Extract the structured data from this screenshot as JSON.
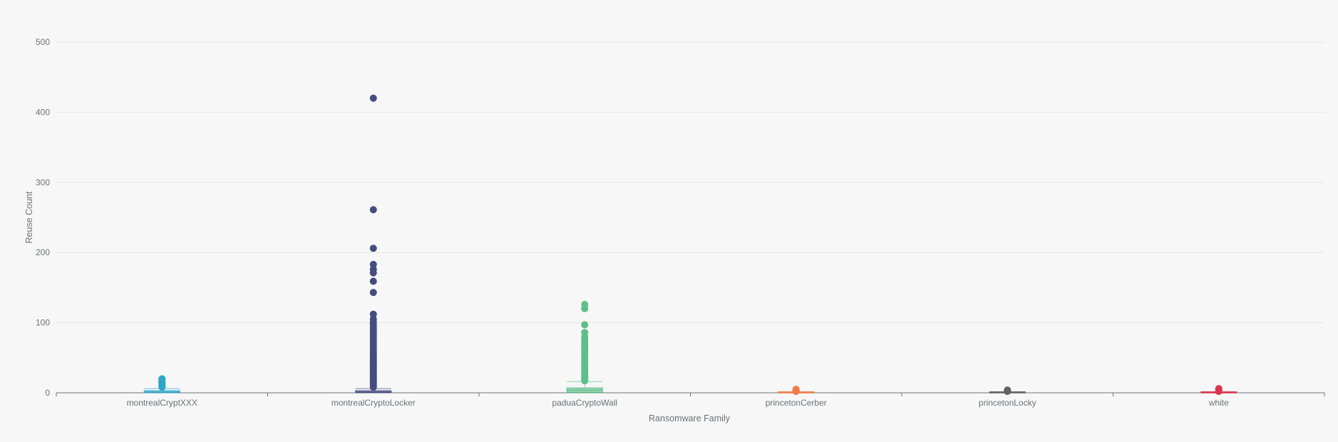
{
  "chart_data": {
    "type": "boxplot",
    "title": "",
    "xlabel": "Ransomware Family",
    "ylabel": "Reuse Count",
    "ylim": [
      0,
      500
    ],
    "yticks": [
      0,
      100,
      200,
      300,
      400,
      500
    ],
    "grid": true,
    "categories": [
      "montrealCryptXXX",
      "montrealCryptoLocker",
      "paduaCryptoWall",
      "princetonCerber",
      "princetonLocky",
      "white"
    ],
    "series": [
      {
        "category": "montrealCryptXXX",
        "color": "#2ea7c9",
        "box": {
          "min": 0,
          "q1": 1,
          "median": 1,
          "q3": 3,
          "max": 6
        },
        "outliers": [
          8,
          9,
          10,
          11,
          12,
          13,
          14,
          15,
          16,
          17,
          18,
          19,
          20
        ]
      },
      {
        "category": "montrealCryptoLocker",
        "color": "#444d7e",
        "box": {
          "min": 0,
          "q1": 1,
          "median": 1,
          "q3": 3,
          "max": 6
        },
        "outliers": [
          8,
          10,
          12,
          14,
          16,
          18,
          20,
          22,
          24,
          26,
          28,
          30,
          32,
          34,
          36,
          38,
          40,
          42,
          44,
          46,
          48,
          50,
          53,
          56,
          59,
          62,
          65,
          68,
          71,
          74,
          77,
          80,
          83,
          86,
          89,
          92,
          95,
          98,
          101,
          105,
          112,
          143,
          159,
          171,
          176,
          183,
          206,
          261,
          420
        ]
      },
      {
        "category": "paduaCryptoWall",
        "color": "#5ebf8a",
        "box": {
          "min": 0,
          "q1": 1,
          "median": 4,
          "q3": 7,
          "max": 16
        },
        "outliers": [
          17,
          19,
          21,
          23,
          25,
          27,
          29,
          31,
          33,
          35,
          37,
          40,
          43,
          46,
          49,
          52,
          55,
          58,
          61,
          64,
          67,
          70,
          73,
          76,
          80,
          86,
          97,
          120,
          126
        ]
      },
      {
        "category": "princetonCerber",
        "color": "#f07a4a",
        "box": {
          "min": 0,
          "q1": 0,
          "median": 0,
          "q3": 1,
          "max": 1
        },
        "outliers": [
          2,
          3,
          4,
          5
        ]
      },
      {
        "category": "princetonLocky",
        "color": "#626262",
        "box": {
          "min": 0,
          "q1": 0,
          "median": 0,
          "q3": 1,
          "max": 1
        },
        "outliers": [
          2,
          3,
          4
        ]
      },
      {
        "category": "white",
        "color": "#d9354c",
        "box": {
          "min": 0,
          "q1": 0,
          "median": 0,
          "q3": 1,
          "max": 1
        },
        "outliers": [
          2,
          3,
          4,
          5,
          6
        ]
      }
    ]
  }
}
